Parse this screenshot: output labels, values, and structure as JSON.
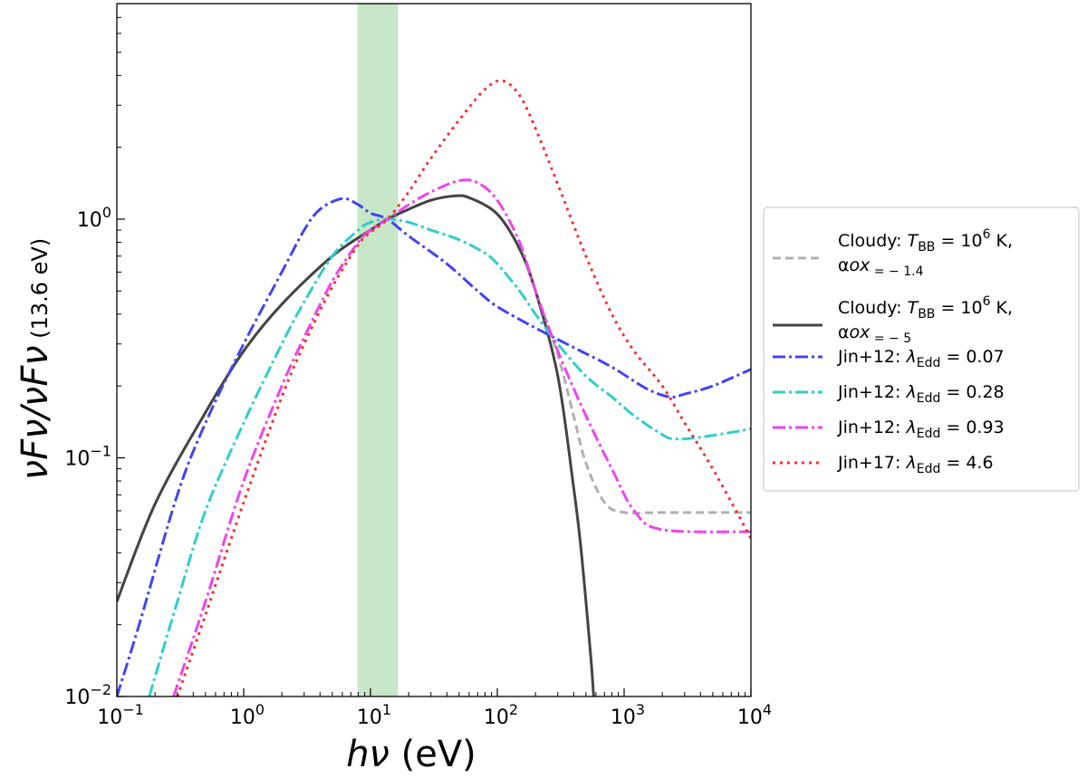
{
  "chart_data": {
    "type": "line",
    "x_scale": "log",
    "y_scale": "log",
    "xlim": [
      0.1,
      10000
    ],
    "ylim": [
      0.01,
      8
    ],
    "xlabel": "hν (eV)",
    "ylabel": "νFν/νFν (13.6 eV)",
    "x_ticks": [
      {
        "value": 0.1,
        "mant": "10",
        "exp": "−1"
      },
      {
        "value": 1,
        "mant": "10",
        "exp": "0"
      },
      {
        "value": 10,
        "mant": "10",
        "exp": "1"
      },
      {
        "value": 100,
        "mant": "10",
        "exp": "2"
      },
      {
        "value": 1000,
        "mant": "10",
        "exp": "3"
      },
      {
        "value": 10000,
        "mant": "10",
        "exp": "4"
      }
    ],
    "y_ticks": [
      {
        "value": 0.01,
        "mant": "10",
        "exp": "−2"
      },
      {
        "value": 0.1,
        "mant": "10",
        "exp": "−1"
      },
      {
        "value": 1,
        "mant": "10",
        "exp": "0"
      }
    ],
    "shaded_band": {
      "x_range": [
        7.9,
        16.5
      ],
      "color": "#c8e6c8"
    },
    "legend_position": "outside-right",
    "series": [
      {
        "name": "Cloudy: T_BB = 10^6 K, α_ox = −1.4",
        "legend_lines": [
          [
            "Cloudy: ",
            "T",
            "BB",
            " = 10",
            "6",
            " K,"
          ],
          [
            "α",
            "ox",
            " = − 1.4"
          ]
        ],
        "color": "#b0b0b0",
        "dash": "9,5",
        "width": 3,
        "points": [
          [
            0.1,
            0.025
          ],
          [
            0.2,
            0.064
          ],
          [
            0.5,
            0.155
          ],
          [
            1,
            0.28
          ],
          [
            2,
            0.44
          ],
          [
            5,
            0.7
          ],
          [
            10,
            0.9
          ],
          [
            13.6,
            1.0
          ],
          [
            20,
            1.1
          ],
          [
            30,
            1.2
          ],
          [
            45,
            1.25
          ],
          [
            60,
            1.23
          ],
          [
            100,
            1.05
          ],
          [
            150,
            0.75
          ],
          [
            200,
            0.5
          ],
          [
            300,
            0.27
          ],
          [
            400,
            0.15
          ],
          [
            500,
            0.095
          ],
          [
            700,
            0.065
          ],
          [
            1000,
            0.059
          ],
          [
            2000,
            0.059
          ],
          [
            10000,
            0.059
          ]
        ]
      },
      {
        "name": "Cloudy: T_BB = 10^6 K, α_ox = −5",
        "legend_lines": [
          [
            "Cloudy: ",
            "T",
            "BB",
            " = 10",
            "6",
            " K,"
          ],
          [
            "α",
            "ox",
            " = − 5"
          ]
        ],
        "color": "#444444",
        "dash": "",
        "width": 3,
        "points": [
          [
            0.1,
            0.025
          ],
          [
            0.2,
            0.064
          ],
          [
            0.5,
            0.155
          ],
          [
            1,
            0.28
          ],
          [
            2,
            0.44
          ],
          [
            5,
            0.7
          ],
          [
            10,
            0.9
          ],
          [
            13.6,
            1.0
          ],
          [
            20,
            1.1
          ],
          [
            30,
            1.2
          ],
          [
            45,
            1.25
          ],
          [
            60,
            1.23
          ],
          [
            100,
            1.05
          ],
          [
            150,
            0.75
          ],
          [
            200,
            0.5
          ],
          [
            300,
            0.22
          ],
          [
            400,
            0.075
          ],
          [
            450,
            0.045
          ],
          [
            500,
            0.025
          ],
          [
            550,
            0.014
          ],
          [
            575,
            0.01
          ]
        ]
      },
      {
        "name": "Jin+12: λ_Edd = 0.07",
        "legend_lines": [
          [
            "Jin+12: ",
            "λ",
            "Edd",
            " = 0.07",
            "",
            ""
          ]
        ],
        "color": "#4444ee",
        "dash": "14,4,3,4",
        "width": 3,
        "points": [
          [
            0.1,
            0.01
          ],
          [
            0.15,
            0.02
          ],
          [
            0.3,
            0.07
          ],
          [
            0.5,
            0.14
          ],
          [
            1,
            0.3
          ],
          [
            2,
            0.6
          ],
          [
            3,
            0.9
          ],
          [
            4,
            1.1
          ],
          [
            6,
            1.22
          ],
          [
            8,
            1.15
          ],
          [
            10,
            1.06
          ],
          [
            13.6,
            1.0
          ],
          [
            20,
            0.85
          ],
          [
            40,
            0.65
          ],
          [
            70,
            0.5
          ],
          [
            100,
            0.43
          ],
          [
            200,
            0.35
          ],
          [
            400,
            0.29
          ],
          [
            800,
            0.24
          ],
          [
            1500,
            0.195
          ],
          [
            2300,
            0.18
          ],
          [
            3000,
            0.185
          ],
          [
            5000,
            0.2
          ],
          [
            10000,
            0.235
          ]
        ]
      },
      {
        "name": "Jin+12: λ_Edd = 0.28",
        "legend_lines": [
          [
            "Jin+12: ",
            "λ",
            "Edd",
            " = 0.28",
            "",
            ""
          ]
        ],
        "color": "#33cccc",
        "dash": "14,4,3,4",
        "width": 3,
        "points": [
          [
            0.18,
            0.01
          ],
          [
            0.3,
            0.025
          ],
          [
            0.5,
            0.06
          ],
          [
            1,
            0.14
          ],
          [
            2,
            0.3
          ],
          [
            3,
            0.45
          ],
          [
            5,
            0.7
          ],
          [
            8,
            0.9
          ],
          [
            10,
            0.97
          ],
          [
            13.6,
            1.0
          ],
          [
            20,
            0.97
          ],
          [
            30,
            0.9
          ],
          [
            50,
            0.82
          ],
          [
            80,
            0.72
          ],
          [
            100,
            0.65
          ],
          [
            150,
            0.5
          ],
          [
            200,
            0.4
          ],
          [
            300,
            0.3
          ],
          [
            500,
            0.22
          ],
          [
            800,
            0.18
          ],
          [
            1200,
            0.15
          ],
          [
            2000,
            0.125
          ],
          [
            2500,
            0.12
          ],
          [
            4000,
            0.122
          ],
          [
            10000,
            0.132
          ]
        ]
      },
      {
        "name": "Jin+12: λ_Edd = 0.93",
        "legend_lines": [
          [
            "Jin+12: ",
            "λ",
            "Edd",
            " = 0.93",
            "",
            ""
          ]
        ],
        "color": "#ee44ee",
        "dash": "14,4,3,4",
        "width": 3,
        "points": [
          [
            0.28,
            0.01
          ],
          [
            0.5,
            0.025
          ],
          [
            1,
            0.08
          ],
          [
            2,
            0.2
          ],
          [
            3,
            0.32
          ],
          [
            5,
            0.55
          ],
          [
            8,
            0.8
          ],
          [
            10,
            0.9
          ],
          [
            13.6,
            1.0
          ],
          [
            20,
            1.15
          ],
          [
            30,
            1.3
          ],
          [
            50,
            1.45
          ],
          [
            70,
            1.42
          ],
          [
            100,
            1.2
          ],
          [
            150,
            0.8
          ],
          [
            200,
            0.5
          ],
          [
            300,
            0.28
          ],
          [
            500,
            0.15
          ],
          [
            800,
            0.09
          ],
          [
            1200,
            0.06
          ],
          [
            2000,
            0.05
          ],
          [
            10000,
            0.049
          ]
        ]
      },
      {
        "name": "Jin+17: λ_Edd = 4.6",
        "legend_lines": [
          [
            "Jin+17: ",
            "λ",
            "Edd",
            " = 4.6",
            "",
            ""
          ]
        ],
        "color": "#ee3333",
        "dash": "3,5",
        "width": 3,
        "points": [
          [
            0.3,
            0.01
          ],
          [
            0.5,
            0.022
          ],
          [
            1,
            0.065
          ],
          [
            2,
            0.18
          ],
          [
            3,
            0.3
          ],
          [
            5,
            0.52
          ],
          [
            8,
            0.78
          ],
          [
            10,
            0.88
          ],
          [
            13.6,
            1.0
          ],
          [
            20,
            1.3
          ],
          [
            30,
            1.8
          ],
          [
            50,
            2.6
          ],
          [
            80,
            3.5
          ],
          [
            110,
            3.8
          ],
          [
            150,
            3.3
          ],
          [
            200,
            2.4
          ],
          [
            300,
            1.4
          ],
          [
            500,
            0.7
          ],
          [
            800,
            0.4
          ],
          [
            1200,
            0.28
          ],
          [
            2000,
            0.2
          ],
          [
            3000,
            0.14
          ],
          [
            5000,
            0.09
          ],
          [
            10000,
            0.046
          ]
        ]
      }
    ]
  }
}
